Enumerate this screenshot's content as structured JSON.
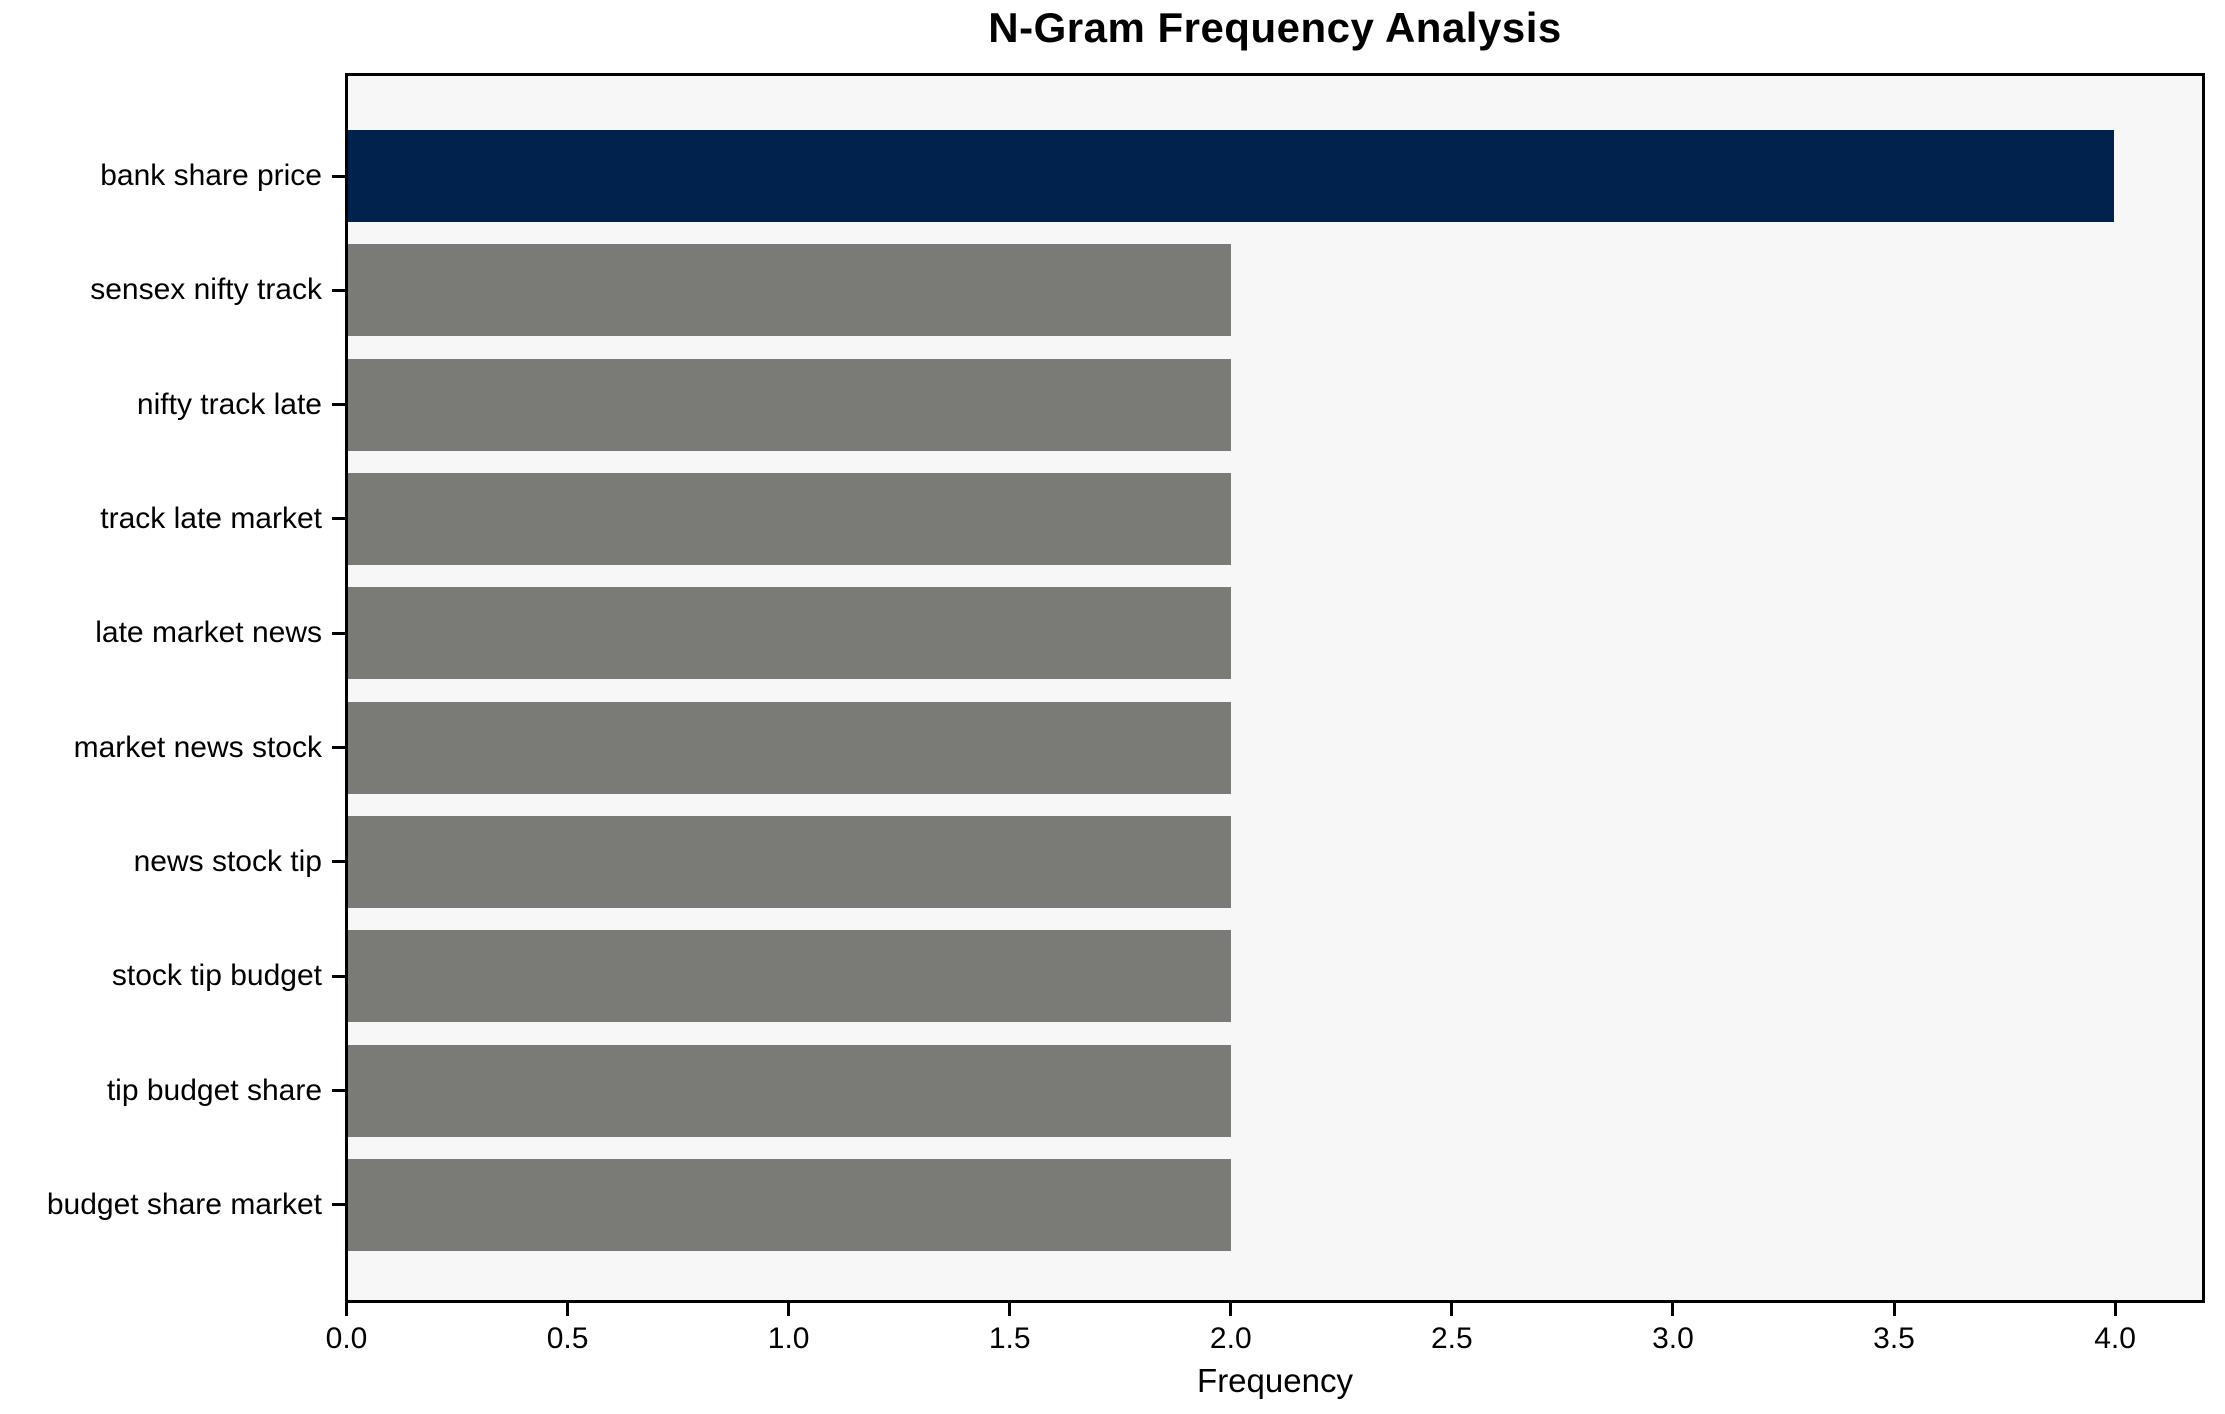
{
  "chart_data": {
    "type": "bar",
    "orientation": "horizontal",
    "title": "N-Gram Frequency Analysis",
    "xlabel": "Frequency",
    "ylabel": "",
    "categories": [
      "bank share price",
      "sensex nifty track",
      "nifty track late",
      "track late market",
      "late market news",
      "market news stock",
      "news stock tip",
      "stock tip budget",
      "tip budget share",
      "budget share market"
    ],
    "values": [
      4,
      2,
      2,
      2,
      2,
      2,
      2,
      2,
      2,
      2
    ],
    "xlim": [
      0,
      4.2
    ],
    "xtick_labels": [
      "0.0",
      "0.5",
      "1.0",
      "1.5",
      "2.0",
      "2.5",
      "3.0",
      "3.5",
      "4.0"
    ],
    "grid": false,
    "legend": "none",
    "highlight_index": 0,
    "colors": {
      "highlight_bar": "#01224d",
      "default_bar": "#7a7a76",
      "plot_background": "#f7f7f7",
      "figure_background": "#ffffff",
      "spine": "#000000",
      "text": "#000000"
    }
  }
}
